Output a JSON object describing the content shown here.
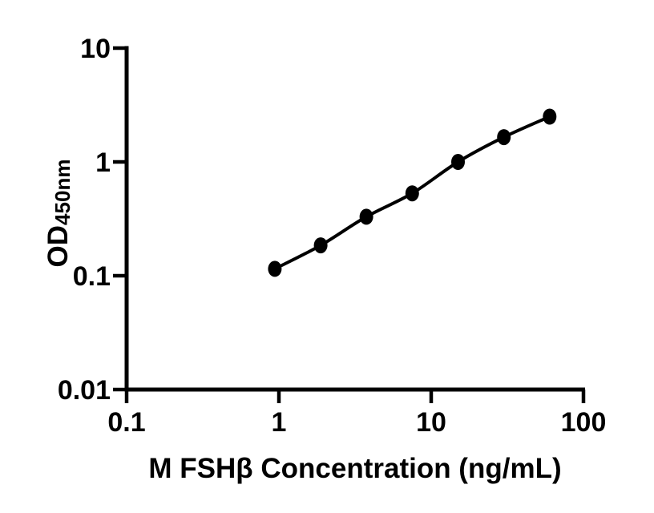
{
  "chart_data": {
    "type": "line",
    "title": "",
    "x": [
      0.94,
      1.88,
      3.75,
      7.5,
      15,
      30,
      60
    ],
    "y": [
      0.115,
      0.185,
      0.33,
      0.53,
      1.0,
      1.65,
      2.5
    ],
    "xlabel": "M FSHβ Concentration (ng/mL)",
    "ylabel": "OD",
    "ylabel_subscript": "450nm",
    "xscale": "log",
    "yscale": "log",
    "xlim": [
      0.1,
      100
    ],
    "ylim": [
      0.01,
      10
    ],
    "x_ticks": [
      0.1,
      1,
      10,
      100
    ],
    "x_tick_labels": [
      "0.1",
      "1",
      "10",
      "100"
    ],
    "y_ticks": [
      10,
      1,
      0.1,
      0.01
    ],
    "y_tick_labels": [
      "10",
      "1",
      "0.1",
      "0.01"
    ],
    "grid": false,
    "legend": "none",
    "line_color": "#000000",
    "marker_color": "#000000",
    "axis_color": "#000000",
    "background_color": "#ffffff"
  }
}
